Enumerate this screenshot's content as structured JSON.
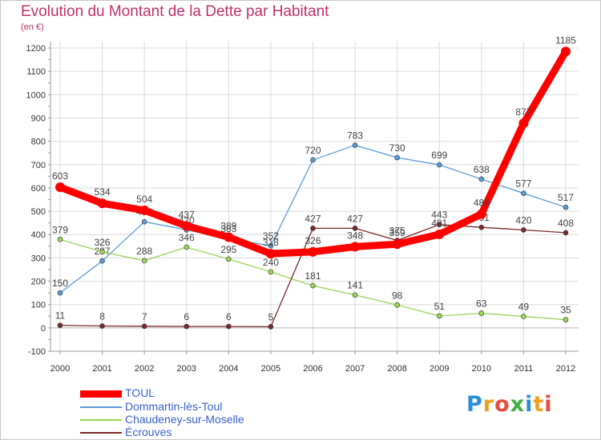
{
  "header": {
    "title": "Evolution du Montant de la Dette par Habitant",
    "subtitle": "(en €)"
  },
  "logo": {
    "letters": [
      "P",
      "r",
      "o",
      "x",
      "i",
      "t",
      "i"
    ],
    "colors": [
      "#2b8fd8",
      "#f0a020",
      "#e94b3c",
      "#3cb043",
      "#2b8fd8",
      "#f0a020",
      "#e94b3c"
    ]
  },
  "chart_data": {
    "type": "line",
    "title": "Evolution du Montant de la Dette par Habitant",
    "ylabel": "(en €)",
    "xlabel": "",
    "x": [
      "2000",
      "2001",
      "2002",
      "2003",
      "2004",
      "2005",
      "2006",
      "2007",
      "2008",
      "2009",
      "2010",
      "2011",
      "2012"
    ],
    "ylim": [
      -100,
      1200
    ],
    "yticks": [
      -100,
      0,
      100,
      200,
      300,
      400,
      500,
      600,
      700,
      800,
      900,
      1000,
      1100,
      1200
    ],
    "grid": true,
    "legend": "bottom-left",
    "series": [
      {
        "name": "Dommartin-lès-Toul",
        "color": "#5b9bd5",
        "values": [
          150,
          287,
          455,
          420,
          383,
          352,
          720,
          783,
          730,
          699,
          638,
          577,
          517
        ],
        "labels": [
          "150",
          "287",
          "455",
          "420",
          "383",
          "352",
          "720",
          "783",
          "730",
          "699",
          "638",
          "577",
          "517"
        ]
      },
      {
        "name": "Chaudeney-sur-Moselle",
        "color": "#9bd45a",
        "values": [
          379,
          326,
          288,
          346,
          295,
          240,
          181,
          141,
          98,
          51,
          63,
          49,
          35
        ],
        "labels": [
          "379",
          "326",
          "288",
          "346",
          "295",
          "240",
          "181",
          "141",
          "98",
          "51",
          "63",
          "49",
          "35"
        ]
      },
      {
        "name": "Écrouves",
        "color": "#7a2a2a",
        "values": [
          11,
          8,
          7,
          6,
          6,
          5,
          427,
          427,
          375,
          443,
          431,
          420,
          408
        ],
        "labels": [
          "11",
          "8",
          "7",
          "6",
          "6",
          "5",
          "427",
          "427",
          "375",
          "443",
          "431",
          "420",
          "408"
        ]
      },
      {
        "name": "TOUL",
        "color": "#ff0000",
        "values": [
          603,
          534,
          504,
          437,
          389,
          318,
          326,
          348,
          359,
          401,
          488,
          877,
          1185
        ],
        "labels": [
          "603",
          "534",
          "504",
          "437",
          "389",
          "318",
          "326",
          "348",
          "359",
          "401",
          "488",
          "877",
          "1185"
        ]
      }
    ],
    "legend_order": [
      "TOUL",
      "Dommartin-lès-Toul",
      "Chaudeney-sur-Moselle",
      "Écrouves"
    ]
  }
}
